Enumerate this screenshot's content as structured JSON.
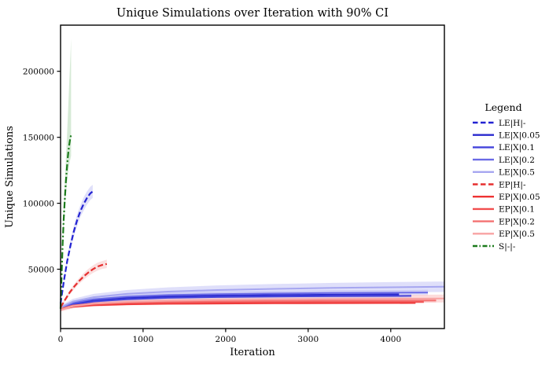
{
  "figure": {
    "title": "Unique Simulations over Iteration with 90% CI",
    "xlabel": "Iteration",
    "ylabel": "Unique Simulations"
  },
  "legend": {
    "title": "Legend"
  },
  "chart_data": {
    "type": "line",
    "title": "Unique Simulations over Iteration with 90% CI",
    "xlabel": "Iteration",
    "ylabel": "Unique Simulations",
    "ci_level": "90%",
    "grid": false,
    "legend_position": "right-outside",
    "xlim": [
      0,
      4650
    ],
    "ylim": [
      5000,
      235000
    ],
    "x_ticks": [
      0,
      1000,
      2000,
      3000,
      4000
    ],
    "y_ticks": [
      50000,
      100000,
      150000,
      200000
    ],
    "series": [
      {
        "label": "LE|H|-",
        "color": "#2323d2",
        "band_color": "rgba(40,40,220,0.15)",
        "style": "dashed",
        "lw": 2.2,
        "x": [
          0,
          40,
          80,
          120,
          160,
          200,
          240,
          280,
          320,
          360,
          390
        ],
        "y": [
          24000,
          41000,
          56000,
          68000,
          78500,
          87000,
          94000,
          99500,
          104000,
          107500,
          109000
        ],
        "lo": [
          23000,
          39000,
          53000,
          64500,
          74500,
          82500,
          89500,
          94500,
          99000,
          102500,
          104000
        ],
        "hi": [
          25000,
          43000,
          59000,
          71500,
          82500,
          91500,
          98500,
          104500,
          109000,
          112500,
          114000
        ]
      },
      {
        "label": "LE|X|0.05",
        "color": "#2a2ace",
        "band_color": "rgba(42,42,206,0.15)",
        "style": "solid",
        "lw": 2,
        "x": [
          0,
          150,
          400,
          800,
          1300,
          1900,
          2600,
          3300,
          4100
        ],
        "y": [
          20500,
          24000,
          26500,
          28300,
          29400,
          30000,
          30400,
          30700,
          30900
        ],
        "lo": [
          19800,
          22900,
          25300,
          27000,
          28100,
          28700,
          29100,
          29400,
          29600
        ],
        "hi": [
          21200,
          25100,
          27700,
          29600,
          30700,
          31300,
          31700,
          32000,
          32200
        ]
      },
      {
        "label": "LE|X|0.1",
        "color": "#4343dc",
        "band_color": "rgba(67,67,220,0.15)",
        "style": "solid",
        "lw": 2,
        "x": [
          0,
          150,
          400,
          800,
          1300,
          1900,
          2600,
          3300,
          4250
        ],
        "y": [
          20000,
          23200,
          25500,
          27200,
          28300,
          28900,
          29300,
          29600,
          29800
        ],
        "lo": [
          19200,
          22000,
          24100,
          25700,
          26800,
          27400,
          27800,
          28100,
          28300
        ],
        "hi": [
          20800,
          24400,
          26900,
          28700,
          29800,
          30400,
          30800,
          31100,
          31300
        ]
      },
      {
        "label": "LE|X|0.2",
        "color": "#6a6ae6",
        "band_color": "rgba(106,106,230,0.18)",
        "style": "solid",
        "lw": 2,
        "x": [
          0,
          150,
          400,
          800,
          1300,
          1900,
          2600,
          3300,
          4450
        ],
        "y": [
          20800,
          24500,
          27200,
          29200,
          30400,
          31100,
          31600,
          32000,
          32300
        ],
        "lo": [
          19700,
          23000,
          25400,
          27300,
          28400,
          29100,
          29600,
          30000,
          30300
        ],
        "hi": [
          21900,
          26000,
          29000,
          31100,
          32400,
          33100,
          33600,
          34000,
          34300
        ]
      },
      {
        "label": "LE|X|0.5",
        "color": "#a6a6f0",
        "band_color": "rgba(150,150,240,0.30)",
        "style": "solid",
        "lw": 2,
        "x": [
          0,
          150,
          400,
          800,
          1300,
          1900,
          2600,
          3300,
          4000,
          4650
        ],
        "y": [
          21000,
          25500,
          28800,
          31300,
          33000,
          34200,
          35100,
          35800,
          36300,
          36700
        ],
        "lo": [
          19500,
          23500,
          26300,
          28400,
          29800,
          30700,
          31400,
          32000,
          32400,
          32700
        ],
        "hi": [
          22500,
          27500,
          31300,
          34200,
          36200,
          37700,
          38800,
          39600,
          40200,
          40700
        ]
      },
      {
        "label": "EP|H|-",
        "color": "#e62f2f",
        "band_color": "rgba(230,47,47,0.15)",
        "style": "dashed",
        "lw": 2.2,
        "x": [
          0,
          56,
          112,
          168,
          224,
          280,
          336,
          392,
          448,
          504,
          560
        ],
        "y": [
          21000,
          27000,
          32500,
          37000,
          41000,
          44500,
          47500,
          50000,
          52000,
          53200,
          54000
        ],
        "lo": [
          20200,
          25800,
          30800,
          35000,
          38800,
          42000,
          44800,
          47200,
          49000,
          50200,
          50800
        ],
        "hi": [
          21800,
          28200,
          34200,
          39000,
          43200,
          47000,
          50200,
          52800,
          55000,
          56200,
          57200
        ]
      },
      {
        "label": "EP|X|0.05",
        "color": "#ee3333",
        "band_color": "rgba(238,51,51,0.15)",
        "style": "solid",
        "lw": 2,
        "x": [
          0,
          150,
          400,
          800,
          1300,
          1900,
          2600,
          3300,
          4300
        ],
        "y": [
          19500,
          21500,
          22700,
          23400,
          23800,
          24000,
          24200,
          24300,
          24400
        ],
        "lo": [
          18900,
          20700,
          21800,
          22500,
          22900,
          23100,
          23300,
          23400,
          23500
        ],
        "hi": [
          20100,
          22300,
          23600,
          24300,
          24700,
          24900,
          25100,
          25200,
          25300
        ]
      },
      {
        "label": "EP|X|0.1",
        "color": "#f14e4e",
        "band_color": "rgba(241,78,78,0.15)",
        "style": "solid",
        "lw": 2,
        "x": [
          0,
          150,
          400,
          800,
          1300,
          1900,
          2600,
          3300,
          4400
        ],
        "y": [
          19800,
          22000,
          23300,
          24100,
          24500,
          24800,
          25000,
          25100,
          25200
        ],
        "lo": [
          19000,
          21000,
          22200,
          22900,
          23300,
          23600,
          23800,
          23900,
          24000
        ],
        "hi": [
          20600,
          23000,
          24400,
          25300,
          25700,
          26000,
          26200,
          26300,
          26400
        ]
      },
      {
        "label": "EP|X|0.2",
        "color": "#f47272",
        "band_color": "rgba(244,114,114,0.18)",
        "style": "solid",
        "lw": 2,
        "x": [
          0,
          150,
          400,
          800,
          1300,
          1900,
          2600,
          3300,
          4550
        ],
        "y": [
          20000,
          22500,
          24000,
          24900,
          25500,
          25800,
          26000,
          26200,
          26300
        ],
        "lo": [
          18900,
          21200,
          22500,
          23300,
          23900,
          24200,
          24400,
          24600,
          24700
        ],
        "hi": [
          21100,
          23800,
          25500,
          26500,
          27100,
          27400,
          27600,
          27800,
          27900
        ]
      },
      {
        "label": "EP|X|0.5",
        "color": "#f8a3a3",
        "band_color": "rgba(248,140,140,0.30)",
        "style": "solid",
        "lw": 2,
        "x": [
          0,
          150,
          400,
          800,
          1300,
          1900,
          2600,
          3300,
          4000,
          4650
        ],
        "y": [
          19000,
          22000,
          23800,
          25200,
          26100,
          26700,
          27100,
          27400,
          27600,
          27800
        ],
        "lo": [
          17800,
          20300,
          21700,
          22800,
          23500,
          24000,
          24300,
          24500,
          24700,
          24800
        ],
        "hi": [
          20200,
          23700,
          25900,
          27600,
          28700,
          29400,
          29900,
          30300,
          30500,
          30800
        ]
      },
      {
        "label": "S|-|-",
        "color": "#1b7a1b",
        "band_color": "rgba(50,150,50,0.20)",
        "style": "dashdot",
        "lw": 2.2,
        "x": [
          0,
          13,
          26,
          38,
          51,
          64,
          77,
          90,
          102,
          115,
          128
        ],
        "y": [
          20000,
          47000,
          70000,
          88000,
          103000,
          116000,
          127000,
          136000,
          143000,
          148500,
          152000
        ],
        "lo": [
          19000,
          44500,
          65500,
          81500,
          94500,
          105500,
          114500,
          122000,
          128000,
          132500,
          136000
        ],
        "hi": [
          21000,
          50500,
          76000,
          97500,
          115500,
          132500,
          150000,
          168000,
          186500,
          206000,
          225000
        ]
      }
    ]
  }
}
